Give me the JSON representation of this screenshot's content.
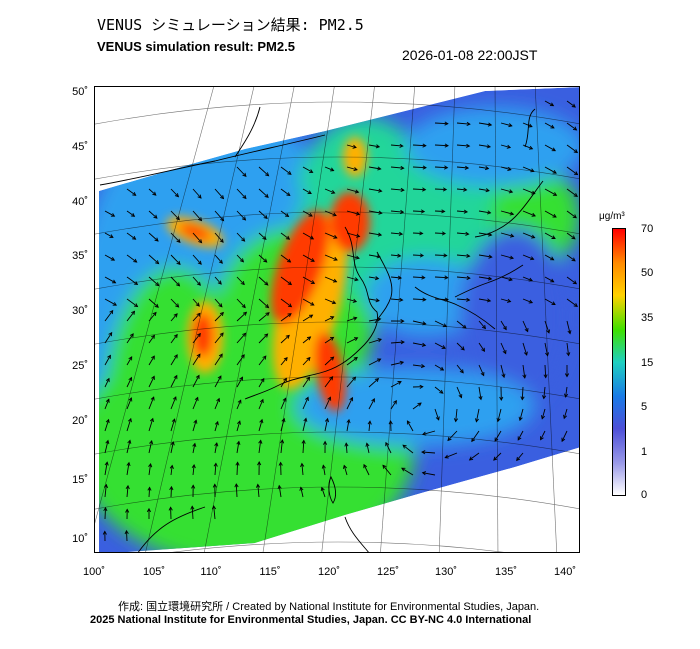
{
  "header": {
    "title_jp": "VENUS シミュレーション結果: PM2.5",
    "title_en": "VENUS simulation result: PM2.5",
    "timestamp": "2026-01-08 22:00JST"
  },
  "map": {
    "lat_labels": [
      "50˚",
      "45˚",
      "40˚",
      "35˚",
      "30˚",
      "25˚",
      "20˚",
      "15˚",
      "10˚"
    ],
    "lon_labels": [
      "100˚",
      "105˚",
      "110˚",
      "115˚",
      "120˚",
      "125˚",
      "130˚",
      "135˚",
      "140˚"
    ],
    "variable": "PM2.5 concentration",
    "field_colors": {
      "very_low": "#3a5fe0",
      "low": "#2fa0f0",
      "moderate": "#22d69a",
      "elevated": "#35e030",
      "high": "#ffb000",
      "very_high": "#ff3a00"
    }
  },
  "legend": {
    "unit": "μg/m³",
    "tick_labels": [
      "70",
      "50",
      "35",
      "15",
      "5",
      "1",
      "0"
    ],
    "colors": [
      "#ff0000",
      "#ff8c00",
      "#ffd200",
      "#3ee000",
      "#1fd0c0",
      "#1a7ae6",
      "#4d50d8",
      "#9a9ae8",
      "#ffffff"
    ]
  },
  "footer": {
    "credit_line": "作成: 国立環境研究所 / Created by National Institute for Environmental Studies, Japan.",
    "copyright_line": "2025 National Institute for Environmental Studies, Japan. CC BY-NC 4.0 International"
  }
}
